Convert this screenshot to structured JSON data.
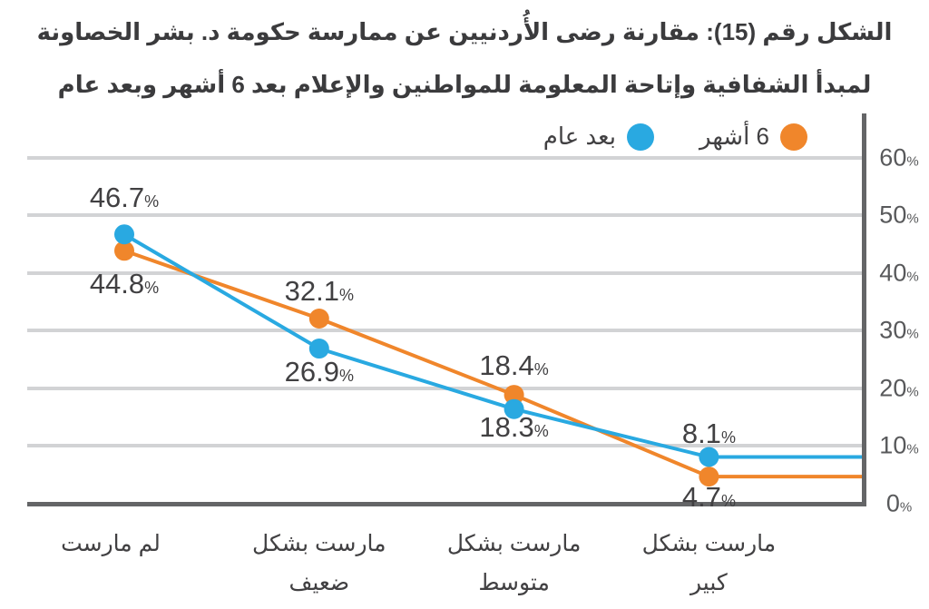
{
  "title": {
    "line1": "الشكل رقم (15): مقارنة رضى الأُردنيين عن ممارسة حكومة د. بشر الخصاونة",
    "line2": "لمبدأ الشفافية وإتاحة المعلومة للمواطنين والإعلام بعد 6 أشهر وبعد عام"
  },
  "colors": {
    "series_6_months": "#F0862B",
    "series_after_year": "#29A9E1",
    "gridline": "#D2D3D5",
    "axis": "#646567",
    "title_text": "#3B3B3D",
    "label_text": "#414042",
    "tick_text": "#58595B"
  },
  "chart_data": {
    "type": "line",
    "direction": "rtl",
    "title": "الشكل رقم (15): مقارنة رضى الأُردنيين عن ممارسة حكومة د. بشر الخصاونة لمبدأ الشفافية وإتاحة المعلومة للمواطنين والإعلام بعد 6 أشهر وبعد عام",
    "categories": [
      [
        "لم مارست"
      ],
      [
        "مارست بشكل",
        "ضعيف"
      ],
      [
        "مارست بشكل",
        "متوسط"
      ],
      [
        "مارست بشكل",
        "كبير"
      ]
    ],
    "series": [
      {
        "name": "6 أشهر",
        "color": "#F0862B",
        "values": [
          44.8,
          32.1,
          18.4,
          4.7
        ]
      },
      {
        "name": "بعد عام",
        "color": "#29A9E1",
        "values": [
          46.7,
          26.9,
          18.3,
          8.1
        ]
      }
    ],
    "yticks": [
      60,
      50,
      40,
      30,
      20,
      10,
      0
    ],
    "ylim": [
      0,
      65
    ],
    "percent_suffix": "%",
    "legend_position": "top",
    "grid": "horizontal",
    "y_axis_side": "right"
  }
}
